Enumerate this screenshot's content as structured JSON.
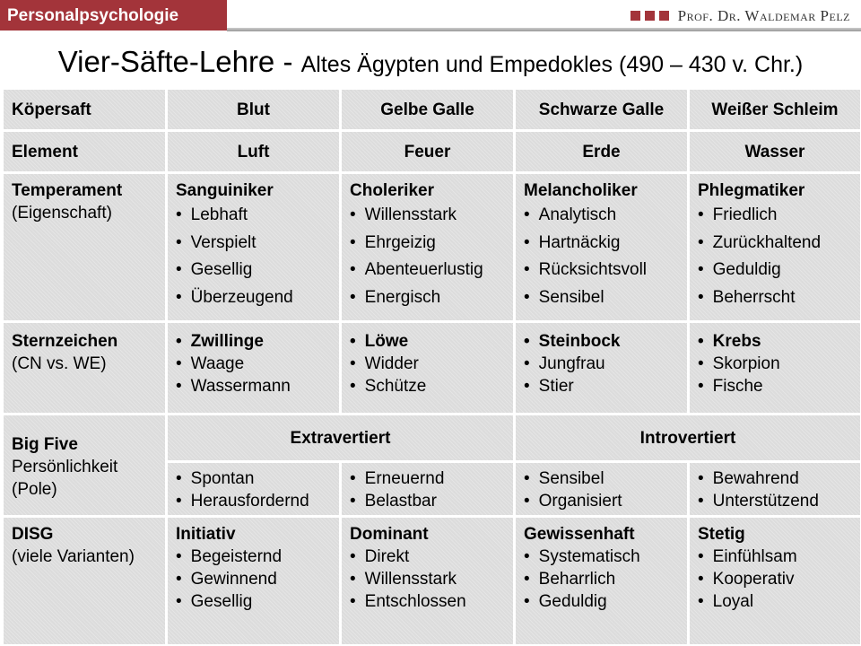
{
  "header": {
    "section": "Personalpsychologie",
    "author": "Prof. Dr. Waldemar Pelz",
    "accent": "#a3343a"
  },
  "title": {
    "main": "Vier-Säfte-Lehre",
    "sub": "Altes Ägypten und Empedokles (490 – 430 v. Chr.)"
  },
  "table": {
    "row1": [
      "Köpersaft",
      "Blut",
      "Gelbe Galle",
      "Schwarze Galle",
      "Weißer Schleim"
    ],
    "row2": [
      "Element",
      "Luft",
      "Feuer",
      "Erde",
      "Wasser"
    ],
    "temperament": {
      "label": "Temperament",
      "sublabel": "(Eigenschaft)",
      "cols": [
        {
          "head": "Sanguiniker",
          "items": [
            "Lebhaft",
            "Verspielt",
            "Gesellig",
            "Überzeugend"
          ]
        },
        {
          "head": "Choleriker",
          "items": [
            "Willensstark",
            "Ehrgeizig",
            "Abenteuerlustig",
            "Energisch"
          ]
        },
        {
          "head": "Melancholiker",
          "items": [
            "Analytisch",
            "Hartnäckig",
            "Rücksichtsvoll",
            "Sensibel"
          ]
        },
        {
          "head": "Phlegmatiker",
          "items": [
            "Friedlich",
            "Zurückhaltend",
            "Geduldig",
            "Beherrscht"
          ]
        }
      ]
    },
    "stern": {
      "label": "Sternzeichen",
      "sublabel": "(CN vs. WE)",
      "cols": [
        [
          "Zwillinge",
          "Waage",
          "Wassermann"
        ],
        [
          "Löwe",
          "Widder",
          "Schütze"
        ],
        [
          "Steinbock",
          "Jungfrau",
          "Stier"
        ],
        [
          "Krebs",
          "Skorpion",
          "Fische"
        ]
      ]
    },
    "bigfive": {
      "label": "Big Five",
      "sublabel1": "Persönlichkeit",
      "sublabel2": "(Pole)",
      "extra": "Extravertiert",
      "intro": "Introvertiert",
      "cols": [
        [
          "Spontan",
          "Herausfordernd"
        ],
        [
          "Erneuernd",
          "Belastbar"
        ],
        [
          "Sensibel",
          "Organisiert"
        ],
        [
          "Bewahrend",
          "Unterstützend"
        ]
      ]
    },
    "disg": {
      "label": "DISG",
      "sublabel": "(viele Varianten)",
      "cols": [
        {
          "head": "Initiativ",
          "items": [
            "Begeisternd",
            "Gewinnend",
            "Gesellig"
          ]
        },
        {
          "head": "Dominant",
          "items": [
            "Direkt",
            "Willensstark",
            "Entschlossen"
          ]
        },
        {
          "head": "Gewissenhaft",
          "items": [
            "Systematisch",
            "Beharrlich",
            "Geduldig"
          ]
        },
        {
          "head": "Stetig",
          "items": [
            "Einfühlsam",
            "Kooperativ",
            "Loyal"
          ]
        }
      ]
    }
  }
}
